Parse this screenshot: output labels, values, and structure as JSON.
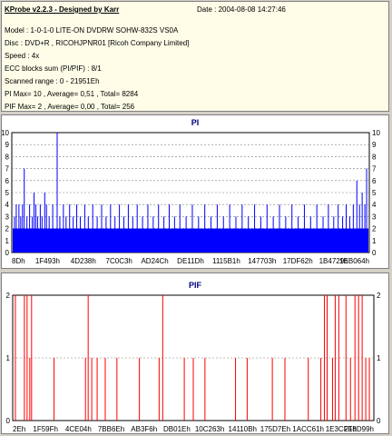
{
  "info": {
    "title": "KProbe v2.2.3 - Designed by Karr",
    "date": "Date : 2004-08-08 14:27:46",
    "lines": [
      "Model : 1-0-1-0 LITE-ON DVDRW SOHW-832S  VS0A",
      "Disc : DVD+R , RICOHJPNR01 [Ricoh Company Limited]",
      "Speed : 4x",
      "ECC blocks sum (PI/PIF) : 8/1",
      "Scanned range : 0 - 21951Eh",
      "PI Max= 10 , Average= 0,51 , Total= 8284",
      "PIF Max= 2 , Average= 0,00 , Total= 256"
    ]
  },
  "chart_data": [
    {
      "type": "bar",
      "title": "PI",
      "ylim": [
        0,
        10
      ],
      "yticks": [
        0,
        1,
        2,
        3,
        4,
        5,
        6,
        7,
        8,
        9,
        10
      ],
      "xticks": [
        "8Dh",
        "1F493h",
        "4D238h",
        "7C0C3h",
        "AD24Ch",
        "DE11Dh",
        "1115B1h",
        "147703h",
        "17DF62h",
        "1B4729h",
        "1EB064h"
      ],
      "grid": true,
      "color": "#0000ff",
      "baseline_level": 2,
      "spikes": [
        [
          2,
          3
        ],
        [
          4,
          4
        ],
        [
          7,
          4
        ],
        [
          9,
          3
        ],
        [
          11,
          4
        ],
        [
          13,
          7
        ],
        [
          16,
          3
        ],
        [
          19,
          4
        ],
        [
          22,
          3
        ],
        [
          24,
          5
        ],
        [
          26,
          4
        ],
        [
          28,
          3
        ],
        [
          31,
          4
        ],
        [
          33,
          3
        ],
        [
          36,
          5
        ],
        [
          38,
          4
        ],
        [
          41,
          3
        ],
        [
          45,
          4
        ],
        [
          50,
          10
        ],
        [
          53,
          3
        ],
        [
          57,
          4
        ],
        [
          60,
          3
        ],
        [
          64,
          4
        ],
        [
          68,
          3
        ],
        [
          72,
          4
        ],
        [
          76,
          3
        ],
        [
          81,
          4
        ],
        [
          85,
          3
        ],
        [
          90,
          4
        ],
        [
          95,
          3
        ],
        [
          100,
          4
        ],
        [
          105,
          3
        ],
        [
          110,
          4
        ],
        [
          115,
          3
        ],
        [
          120,
          4
        ],
        [
          125,
          3
        ],
        [
          130,
          4
        ],
        [
          135,
          3
        ],
        [
          140,
          4
        ],
        [
          146,
          3
        ],
        [
          152,
          4
        ],
        [
          158,
          3
        ],
        [
          164,
          4
        ],
        [
          170,
          3
        ],
        [
          176,
          4
        ],
        [
          182,
          3
        ],
        [
          188,
          4
        ],
        [
          195,
          3
        ],
        [
          202,
          4
        ],
        [
          209,
          3
        ],
        [
          216,
          4
        ],
        [
          223,
          3
        ],
        [
          230,
          4
        ],
        [
          237,
          3
        ],
        [
          244,
          4
        ],
        [
          251,
          3
        ],
        [
          258,
          4
        ],
        [
          265,
          3
        ],
        [
          272,
          4
        ],
        [
          279,
          3
        ],
        [
          286,
          4
        ],
        [
          293,
          3
        ],
        [
          300,
          4
        ],
        [
          307,
          3
        ],
        [
          314,
          4
        ],
        [
          321,
          3
        ],
        [
          328,
          4
        ],
        [
          335,
          3
        ],
        [
          342,
          4
        ],
        [
          349,
          3
        ],
        [
          355,
          4
        ],
        [
          361,
          3
        ],
        [
          366,
          4
        ],
        [
          371,
          3
        ],
        [
          375,
          4
        ],
        [
          379,
          3
        ],
        [
          383,
          4
        ],
        [
          387,
          6
        ],
        [
          390,
          4
        ],
        [
          393,
          5
        ],
        [
          396,
          4
        ],
        [
          398,
          7
        ]
      ]
    },
    {
      "type": "bar",
      "title": "PIF",
      "ylim": [
        0,
        2
      ],
      "yticks": [
        0,
        1,
        2
      ],
      "xticks": [
        "2Eh",
        "1F59Fh",
        "4CE04h",
        "7BB6Eh",
        "AB3F6h",
        "DB01Eh",
        "10C263h",
        "14110Bh",
        "175D7Eh",
        "1ACC61h",
        "1E3CFFh",
        "218D99h"
      ],
      "grid": true,
      "color": "#ff0000",
      "spikes": [
        [
          2,
          2
        ],
        [
          12,
          2
        ],
        [
          15,
          2
        ],
        [
          18,
          1
        ],
        [
          20,
          2
        ],
        [
          45,
          1
        ],
        [
          80,
          1
        ],
        [
          83,
          2
        ],
        [
          87,
          1
        ],
        [
          93,
          1
        ],
        [
          102,
          1
        ],
        [
          115,
          1
        ],
        [
          140,
          1
        ],
        [
          162,
          1
        ],
        [
          166,
          2
        ],
        [
          190,
          1
        ],
        [
          200,
          1
        ],
        [
          213,
          1
        ],
        [
          247,
          1
        ],
        [
          260,
          1
        ],
        [
          288,
          1
        ],
        [
          302,
          1
        ],
        [
          328,
          1
        ],
        [
          342,
          1
        ],
        [
          346,
          2
        ],
        [
          349,
          2
        ],
        [
          355,
          1
        ],
        [
          358,
          2
        ],
        [
          362,
          2
        ],
        [
          370,
          2
        ],
        [
          375,
          1
        ],
        [
          380,
          2
        ],
        [
          384,
          2
        ],
        [
          388,
          2
        ],
        [
          392,
          1
        ],
        [
          396,
          1
        ]
      ]
    }
  ]
}
